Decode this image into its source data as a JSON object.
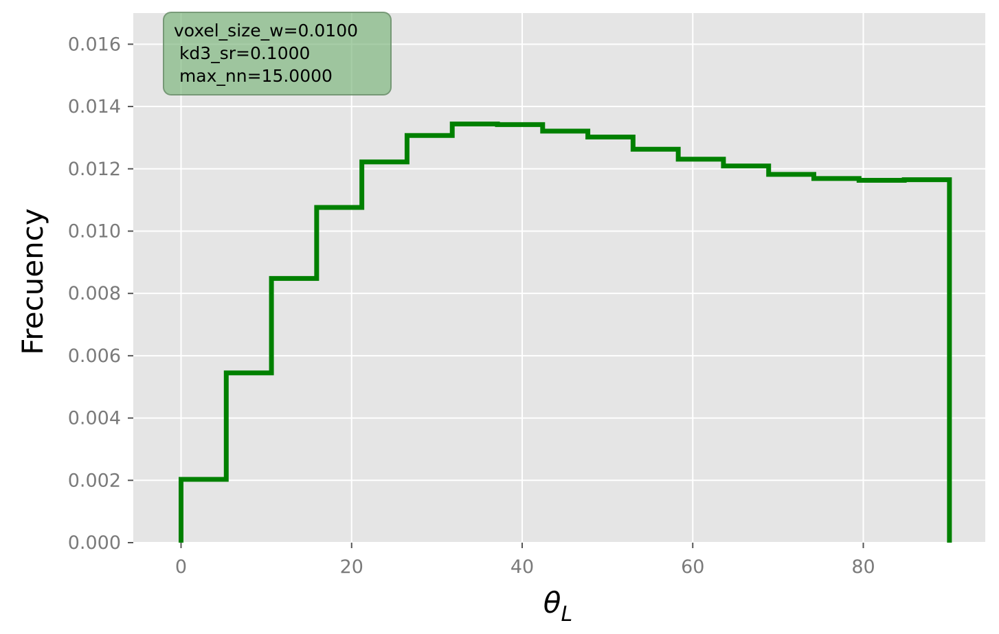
{
  "chart_data": {
    "type": "histogram-step",
    "xlabel_symbol": "θ",
    "xlabel_subscript": "L",
    "ylabel": "Frecuency",
    "xlim": [
      -5.6,
      94.3
    ],
    "ylim": [
      0,
      0.017
    ],
    "xticks": [
      0,
      20,
      40,
      60,
      80
    ],
    "xtick_labels": [
      "0",
      "20",
      "40",
      "60",
      "80"
    ],
    "yticks": [
      0,
      0.002,
      0.004,
      0.006,
      0.008,
      0.01,
      0.012,
      0.014,
      0.016
    ],
    "ytick_labels": [
      "0.000",
      "0.002",
      "0.004",
      "0.006",
      "0.008",
      "0.010",
      "0.012",
      "0.014",
      "0.016"
    ],
    "grid": true,
    "color": "#008000",
    "background": "#e5e5e5",
    "bin_edges": [
      0,
      5.3,
      10.6,
      15.9,
      21.2,
      26.5,
      31.8,
      37.1,
      42.4,
      47.7,
      53.0,
      58.3,
      63.6,
      68.9,
      74.2,
      79.5,
      84.8,
      90.1
    ],
    "values": [
      0.00203,
      0.00545,
      0.00848,
      0.01076,
      0.01222,
      0.01307,
      0.01344,
      0.01342,
      0.01321,
      0.01302,
      0.01263,
      0.01231,
      0.01209,
      0.01182,
      0.01169,
      0.01163,
      0.01165
    ],
    "annotation_lines": [
      "voxel_size_w=0.0100",
      " kd3_sr=0.1000",
      " max_nn=15.0000"
    ],
    "annotation_color": "#78b478",
    "annotation_position": "top-left"
  }
}
